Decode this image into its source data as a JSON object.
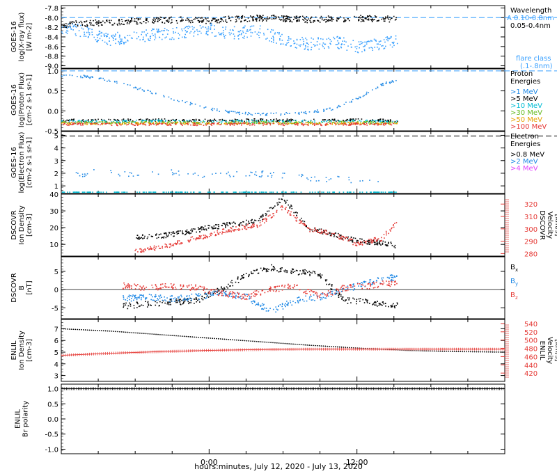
{
  "colors": {
    "black": "#000000",
    "blue": "#1e88e5",
    "cyan": "#00bcd4",
    "green": "#66bb22",
    "orange": "#e6a100",
    "red": "#e53935",
    "magenta": "#e040fb",
    "light_blue": "#39a0ff"
  },
  "xaxis": {
    "title": "hours:minutes, July 12, 2020 - July 13, 2020",
    "tick_labels": [
      "0:00",
      "12:00"
    ]
  },
  "chart_data": [
    {
      "type": "scatter",
      "panel": "goes_xray",
      "ylabel": [
        "GOES-16",
        "log(X-ray flux)",
        "[W m-2]"
      ],
      "yticks": [
        "-7.8",
        "-8.0",
        "-8.2",
        "-8.4",
        "-8.6",
        "-8.8",
        "-9.0"
      ],
      "ylim": [
        -9.05,
        -7.75
      ],
      "legend_title": "Wavelength",
      "legend": [
        {
          "label": "A 0.10-0.8nm",
          "color": "light_blue"
        },
        {
          "label": "0.05-0.4nm",
          "color": "black"
        }
      ],
      "annotation": [
        "flare class",
        "(.1-.8nm)"
      ],
      "reference_line": {
        "y": -8.0,
        "label": "A"
      },
      "series": [
        {
          "name": "0.05-0.4nm",
          "color": "black",
          "x": [
            -12,
            -10,
            -8,
            -6,
            -4,
            -2,
            0,
            2,
            4,
            6,
            8,
            10,
            12,
            14,
            15.3
          ],
          "y": [
            -8.15,
            -8.12,
            -8.1,
            -8.07,
            -8.05,
            -8.05,
            -8.06,
            -8.03,
            -8.01,
            -8.02,
            -8.04,
            -8.03,
            -8.02,
            -8.02,
            -8.04
          ]
        },
        {
          "name": "0.10-0.8nm",
          "color": "light_blue",
          "x": [
            -12,
            -10,
            -8,
            -6,
            -4,
            -2,
            0,
            2,
            4,
            6,
            8,
            10,
            12,
            14,
            15.3
          ],
          "y": [
            -8.2,
            -8.3,
            -8.45,
            -8.4,
            -8.35,
            -8.3,
            -8.25,
            -8.32,
            -8.28,
            -8.45,
            -8.55,
            -8.5,
            -8.6,
            -8.55,
            -8.45
          ]
        }
      ]
    },
    {
      "type": "scatter",
      "panel": "goes_proton",
      "ylabel": [
        "GOES-16",
        "log(Proton Flux)",
        "[cm-2 s-1 sr-1]"
      ],
      "yticks": [
        "1.0",
        "0.5",
        "0.0",
        "-0.5"
      ],
      "ylim": [
        -0.5,
        1.05
      ],
      "legend_title": [
        "Proton",
        "Energies"
      ],
      "legend": [
        {
          "label": ">1 MeV",
          "color": "blue"
        },
        {
          "label": ">5 MeV",
          "color": "black"
        },
        {
          "label": ">10 MeV",
          "color": "cyan"
        },
        {
          "label": ">30 MeV",
          "color": "green"
        },
        {
          "label": ">50 MeV",
          "color": "orange"
        },
        {
          "label": ">100 MeV",
          "color": "red"
        }
      ],
      "reference_line": {
        "y": 1.0
      },
      "series": [
        {
          "name": ">1 MeV",
          "color": "blue",
          "x": [
            -12,
            -10,
            -8,
            -6,
            -4,
            -2,
            0,
            2,
            4,
            6,
            8,
            10,
            12,
            14,
            15.3
          ],
          "y": [
            0.88,
            0.86,
            0.75,
            0.58,
            0.4,
            0.22,
            0.05,
            -0.05,
            -0.08,
            -0.08,
            -0.05,
            0.05,
            0.3,
            0.65,
            0.78
          ]
        },
        {
          "name": ">5 MeV",
          "color": "black",
          "x": [
            -12,
            -8,
            -4,
            0,
            4,
            8,
            12,
            15.3
          ],
          "y": [
            -0.23,
            -0.24,
            -0.23,
            -0.24,
            -0.23,
            -0.24,
            -0.23,
            -0.24
          ]
        },
        {
          "name": ">10 MeV",
          "color": "cyan",
          "x": [
            -12,
            -8,
            -4,
            0,
            4,
            8,
            12,
            15.3
          ],
          "y": [
            -0.26,
            -0.27,
            -0.26,
            -0.27,
            -0.26,
            -0.27,
            -0.26,
            -0.27
          ]
        },
        {
          "name": ">30 MeV",
          "color": "green",
          "x": [
            -12,
            -8,
            -4,
            0,
            4,
            8,
            12,
            15.3
          ],
          "y": [
            -0.29,
            -0.3,
            -0.29,
            -0.3,
            -0.29,
            -0.3,
            -0.29,
            -0.3
          ]
        },
        {
          "name": ">50 MeV",
          "color": "orange",
          "x": [
            -12,
            -8,
            -4,
            0,
            4,
            8,
            12,
            15.3
          ],
          "y": [
            -0.31,
            -0.32,
            -0.31,
            -0.32,
            -0.31,
            -0.32,
            -0.31,
            -0.32
          ]
        },
        {
          "name": ">100 MeV",
          "color": "red",
          "x": [
            -12,
            -8,
            -4,
            0,
            4,
            8,
            12,
            15.3
          ],
          "y": [
            -0.33,
            -0.34,
            -0.33,
            -0.34,
            -0.33,
            -0.34,
            -0.33,
            -0.34
          ]
        }
      ]
    },
    {
      "type": "scatter",
      "panel": "goes_electron",
      "ylabel": [
        "GOES-16",
        "log(Electron Flux)",
        "[cm-2 s-1 sr-1]"
      ],
      "yticks": [
        "5",
        "4",
        "3",
        "2",
        "1"
      ],
      "ylim": [
        0.4,
        5.3
      ],
      "legend_title": [
        "Electron",
        "Energies"
      ],
      "legend": [
        {
          "label": ">0.8 MeV",
          "color": "black"
        },
        {
          "label": ">2 MeV",
          "color": "blue"
        },
        {
          "label": ">4 MeV",
          "color": "magenta"
        }
      ],
      "reference_line": {
        "y": 4.95
      },
      "series": [
        {
          "name": ">2 MeV",
          "color": "blue",
          "x": [
            -11,
            -9,
            -7,
            -5,
            -3,
            -1,
            1,
            3,
            5,
            7,
            9,
            11,
            13,
            14
          ],
          "y": [
            1.8,
            2.1,
            1.9,
            2.0,
            2.1,
            1.9,
            1.8,
            2.0,
            1.9,
            1.7,
            1.6,
            1.5,
            1.4,
            1.2
          ]
        },
        {
          "name": "baseline",
          "color": "cyan",
          "x": [
            -12,
            15.3
          ],
          "y": [
            0.5,
            0.5
          ]
        }
      ]
    },
    {
      "type": "scatter",
      "panel": "dscovr_density",
      "ylabel": [
        "DSCOVR",
        "Ion Density",
        "[cm-3]"
      ],
      "yticks": [
        "40",
        "30",
        "20",
        "10"
      ],
      "ylim": [
        3,
        40
      ],
      "ylabel_right": [
        "DSCOVR",
        "Velocity",
        "[km/s]"
      ],
      "yticks_right": [
        "320",
        "310",
        "300",
        "290",
        "280"
      ],
      "ylim_right": [
        278,
        328
      ],
      "series": [
        {
          "name": "density",
          "color": "black",
          "axis": "left",
          "x": [
            -6,
            -4,
            -2,
            0,
            2,
            4,
            6,
            8,
            10,
            12,
            14,
            15.3
          ],
          "y": [
            14,
            15,
            17,
            20,
            22,
            24,
            38,
            20,
            16,
            12,
            11,
            9
          ]
        },
        {
          "name": "velocity",
          "color": "red",
          "axis": "right",
          "x": [
            -6,
            -4,
            -2,
            0,
            2,
            4,
            6,
            8,
            10,
            12,
            14,
            15.3
          ],
          "y": [
            282,
            285,
            290,
            295,
            300,
            303,
            318,
            300,
            296,
            288,
            292,
            306
          ]
        }
      ]
    },
    {
      "type": "scatter",
      "panel": "dscovr_b",
      "ylabel": [
        "DSCOVR",
        "B",
        "[nT]"
      ],
      "yticks": [
        "5",
        "0",
        "-5"
      ],
      "ylim": [
        -8,
        9
      ],
      "legend": [
        {
          "label": "Bx",
          "color": "black"
        },
        {
          "label": "By",
          "color": "blue"
        },
        {
          "label": "Bz",
          "color": "red"
        }
      ],
      "series": [
        {
          "name": "Bx",
          "color": "black",
          "x": [
            -7,
            -5,
            -3,
            -1,
            1,
            3,
            5,
            7,
            9,
            11,
            13,
            15.3
          ],
          "y": [
            -4.5,
            -4,
            -3.5,
            -3,
            0,
            4,
            6,
            5,
            4,
            -3,
            -3.5,
            -4.5
          ]
        },
        {
          "name": "By",
          "color": "blue",
          "x": [
            -7,
            -5,
            -3,
            -1,
            1,
            3,
            5,
            7,
            9,
            11,
            13,
            15.3
          ],
          "y": [
            -2.5,
            -2,
            -2.5,
            -2,
            -1,
            -2,
            -6,
            -3,
            -2,
            0,
            2,
            3.5
          ]
        },
        {
          "name": "Bz",
          "color": "red",
          "x": [
            -7,
            -5,
            -3,
            -1,
            1,
            3,
            5,
            7,
            9,
            11,
            13,
            15.3
          ],
          "y": [
            1,
            0.5,
            1,
            0.5,
            -1,
            -2,
            0,
            1,
            -2,
            0.5,
            1,
            2
          ]
        }
      ]
    },
    {
      "type": "line",
      "panel": "enlil_density",
      "ylabel": [
        "ENLIL",
        "Ion Density",
        "[cm-3]"
      ],
      "yticks": [
        "7",
        "6",
        "5",
        "4",
        "3"
      ],
      "ylim": [
        2.5,
        7.8
      ],
      "ylabel_right": [
        "ENLIL",
        "Velocity",
        "[km/s]"
      ],
      "yticks_right": [
        "540",
        "520",
        "500",
        "480",
        "460",
        "440",
        "420"
      ],
      "ylim_right": [
        400,
        550
      ],
      "series": [
        {
          "name": "density",
          "color": "black",
          "axis": "left",
          "x": [
            -12,
            -8,
            -4,
            0,
            4,
            8,
            12,
            16,
            20,
            24
          ],
          "y": [
            7.0,
            6.8,
            6.5,
            6.2,
            5.9,
            5.6,
            5.35,
            5.15,
            5.05,
            5.0
          ]
        },
        {
          "name": "velocity",
          "color": "red",
          "axis": "right",
          "x": [
            -12,
            -8,
            -4,
            0,
            4,
            8,
            12,
            16,
            20,
            24
          ],
          "y": [
            463,
            468,
            472,
            475,
            477,
            478,
            478,
            478,
            478,
            478
          ]
        }
      ]
    },
    {
      "type": "line",
      "panel": "enlil_polarity",
      "ylabel": [
        "ENLIL",
        "Br polarity"
      ],
      "yticks": [
        "1.0",
        "0.5",
        "0.0",
        "-0.5",
        "-1.0"
      ],
      "ylim": [
        -1.15,
        1.15
      ],
      "series": [
        {
          "name": "Br polarity",
          "color": "black",
          "x": [
            -12,
            24
          ],
          "y": [
            1.0,
            1.0
          ]
        }
      ]
    }
  ]
}
